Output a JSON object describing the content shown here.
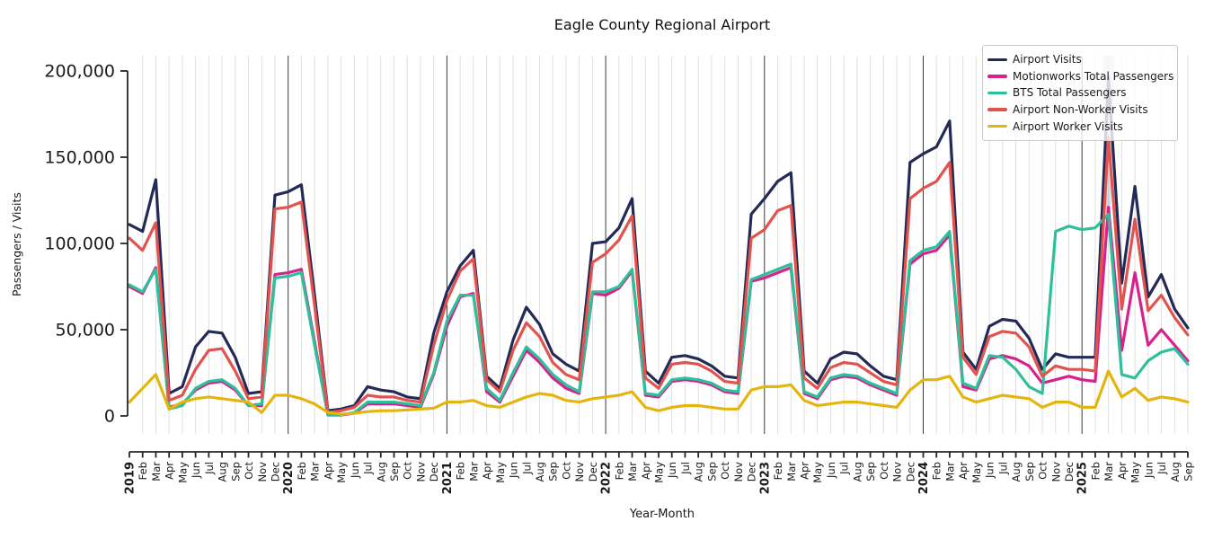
{
  "chart_data": {
    "type": "line",
    "title": "Eagle County Regional Airport",
    "xlabel": "Year-Month",
    "ylabel": "Passengers / Visits",
    "legend_position": "upper right",
    "grid": "vertical gridline per month; darker vertical line at each January; no horizontal gridlines",
    "y_ticks": [
      0,
      50000,
      100000,
      150000,
      200000
    ],
    "ylim": [
      -10000,
      209000
    ],
    "year_tick_indices": [
      0,
      12,
      24,
      36,
      48,
      60,
      72
    ],
    "highlight_band": {
      "x_index": 74,
      "color": "#8a93ad",
      "opacity": 0.32
    },
    "x_tick_labels": [
      "2019",
      "Feb",
      "Mar",
      "Apr",
      "May",
      "Jun",
      "Jul",
      "Aug",
      "Sep",
      "Oct",
      "Nov",
      "Dec",
      "2020",
      "Feb",
      "Mar",
      "Apr",
      "May",
      "Jun",
      "Jul",
      "Aug",
      "Sep",
      "Oct",
      "Nov",
      "Dec",
      "2021",
      "Feb",
      "Mar",
      "Apr",
      "May",
      "Jun",
      "Jul",
      "Aug",
      "Sep",
      "Oct",
      "Nov",
      "Dec",
      "2022",
      "Feb",
      "Mar",
      "Apr",
      "May",
      "Jun",
      "Jul",
      "Aug",
      "Sep",
      "Oct",
      "Nov",
      "Dec",
      "2023",
      "Feb",
      "Mar",
      "Apr",
      "May",
      "Jun",
      "Jul",
      "Aug",
      "Sep",
      "Oct",
      "Nov",
      "Dec",
      "2024",
      "Feb",
      "Mar",
      "Apr",
      "May",
      "Jun",
      "Jul",
      "Aug",
      "Sep",
      "Oct",
      "Nov",
      "Dec",
      "2025",
      "Feb",
      "Mar",
      "Apr",
      "May",
      "Jun",
      "Jul",
      "Aug",
      "Sep"
    ],
    "series": [
      {
        "name": "Airport Visits",
        "color": "#242a56",
        "values": [
          111000,
          107000,
          137000,
          13000,
          17000,
          40000,
          49000,
          48000,
          34000,
          13000,
          14000,
          128000,
          130000,
          134000,
          70000,
          3000,
          4000,
          6000,
          17000,
          15000,
          14000,
          11000,
          10000,
          48000,
          72000,
          87000,
          96000,
          23000,
          16000,
          44000,
          63000,
          53000,
          36000,
          30000,
          26000,
          100000,
          101000,
          109000,
          126000,
          26000,
          19000,
          34000,
          35000,
          33000,
          29000,
          23000,
          22000,
          117000,
          126000,
          136000,
          141000,
          26000,
          19000,
          33000,
          37000,
          36000,
          29000,
          23000,
          21000,
          147000,
          152000,
          156000,
          171000,
          37000,
          27000,
          52000,
          56000,
          55000,
          45000,
          27000,
          36000,
          34000,
          34000,
          34000,
          196000,
          77000,
          133000,
          69000,
          82000,
          62000,
          51000
        ]
      },
      {
        "name": "Motionworks Total Passengers",
        "color": "#d6218e",
        "values": [
          75000,
          71000,
          86000,
          5000,
          7000,
          15000,
          19000,
          20000,
          15000,
          6000,
          6000,
          82000,
          83000,
          85000,
          43000,
          500,
          500,
          1500,
          7000,
          7000,
          7000,
          6000,
          5000,
          24000,
          52000,
          69000,
          71000,
          14000,
          8000,
          23000,
          38000,
          31000,
          22000,
          16000,
          13000,
          71000,
          70000,
          74000,
          84000,
          12000,
          11000,
          20000,
          21000,
          20000,
          18000,
          14000,
          13000,
          78000,
          80000,
          83000,
          86000,
          13000,
          10000,
          21000,
          23000,
          22000,
          18000,
          15000,
          12000,
          88000,
          94000,
          96000,
          105000,
          17000,
          15000,
          33000,
          35000,
          33000,
          29000,
          19000,
          21000,
          23000,
          21000,
          20000,
          121000,
          38000,
          83000,
          41000,
          50000,
          41000,
          32000
        ]
      },
      {
        "name": "BTS Total Passengers",
        "color": "#2ebf9b",
        "values": [
          76000,
          72000,
          85000,
          4000,
          6000,
          16000,
          20000,
          21000,
          16000,
          6000,
          7000,
          80000,
          81000,
          83000,
          41000,
          700,
          700,
          2000,
          8000,
          8000,
          8000,
          7000,
          6000,
          25000,
          55000,
          70000,
          70000,
          16000,
          9000,
          25000,
          40000,
          33000,
          24000,
          18000,
          14000,
          72000,
          72000,
          75000,
          85000,
          13000,
          12000,
          21000,
          22000,
          21000,
          19000,
          15000,
          14000,
          79000,
          82000,
          85000,
          88000,
          14000,
          11000,
          22000,
          24000,
          23000,
          19000,
          16000,
          13000,
          90000,
          96000,
          98000,
          107000,
          19000,
          16000,
          35000,
          34000,
          27000,
          17000,
          13000,
          107000,
          110000,
          108000,
          109000,
          117000,
          24000,
          22000,
          32000,
          37000,
          39000,
          30000
        ]
      },
      {
        "name": "Airport Non-Worker Visits",
        "color": "#e0534f",
        "values": [
          103000,
          96000,
          112000,
          9000,
          12000,
          27000,
          38000,
          39000,
          26000,
          10000,
          11000,
          120000,
          121000,
          124000,
          64000,
          2000,
          3000,
          5000,
          12000,
          11000,
          11000,
          9000,
          8000,
          41000,
          67000,
          84000,
          91000,
          21000,
          14000,
          38000,
          54000,
          46000,
          31000,
          24000,
          21000,
          89000,
          94000,
          102000,
          116000,
          22000,
          16000,
          30000,
          31000,
          30000,
          26000,
          20000,
          19000,
          103000,
          108000,
          119000,
          122000,
          22000,
          16000,
          28000,
          31000,
          30000,
          25000,
          20000,
          18000,
          126000,
          132000,
          136000,
          147000,
          34000,
          24000,
          46000,
          49000,
          48000,
          40000,
          23000,
          29000,
          27000,
          27000,
          26000,
          162000,
          62000,
          114000,
          61000,
          70000,
          57000,
          47000
        ]
      },
      {
        "name": "Airport Worker Visits",
        "color": "#e5b50f",
        "values": [
          8000,
          16000,
          24000,
          4000,
          8000,
          10000,
          11000,
          10000,
          9000,
          8000,
          2000,
          12000,
          12000,
          10000,
          7000,
          2000,
          1000,
          1500,
          2500,
          3000,
          3000,
          3500,
          4000,
          4500,
          8000,
          8000,
          9000,
          6000,
          5000,
          8000,
          11000,
          13000,
          12000,
          9000,
          8000,
          10000,
          11000,
          12000,
          14000,
          5000,
          3000,
          5000,
          6000,
          6000,
          5000,
          4000,
          4000,
          15000,
          17000,
          17000,
          18000,
          9000,
          6000,
          7000,
          8000,
          8000,
          7000,
          6000,
          5000,
          15000,
          21000,
          21000,
          23000,
          11000,
          8000,
          10000,
          12000,
          11000,
          10000,
          5000,
          8000,
          8000,
          5000,
          5000,
          26000,
          11000,
          16000,
          9000,
          11000,
          10000,
          8000
        ]
      }
    ]
  }
}
